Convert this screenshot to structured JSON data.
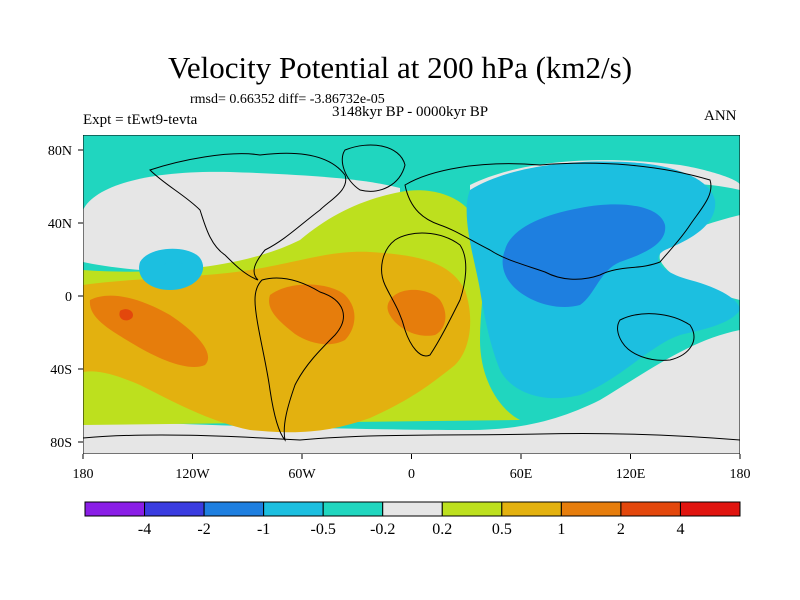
{
  "figure": {
    "title": "Velocity Potential at 200 hPa (km2/s)",
    "stats": "rmsd= 0.66352 diff= -3.86732e-05",
    "period": "3148kyr BP - 0000kyr BP",
    "experiment": "Expt = tEwt9-tevta",
    "season": "ANN"
  },
  "axes": {
    "lat_labels": [
      "80N",
      "40N",
      "0",
      "40S",
      "80S"
    ],
    "lon_labels": [
      "180",
      "120W",
      "60W",
      "0",
      "60E",
      "120E",
      "180"
    ]
  },
  "colorbar": {
    "colors": [
      "#8a1ee6",
      "#3a3ce0",
      "#1e7fe0",
      "#1cbfe0",
      "#20d6bf",
      "#e6e6e6",
      "#bde01e",
      "#e3b10f",
      "#e67d0c",
      "#e3470c",
      "#e0140f"
    ],
    "labels": [
      "-4",
      "-2",
      "-1",
      "-0.5",
      "-0.2",
      "0.2",
      "0.5",
      "1",
      "2",
      "4"
    ]
  },
  "field_colors": {
    "ocean_high_lat": "#20d6bf",
    "neutral": "#e6e6e6",
    "weak_positive": "#bde01e",
    "moderate_positive": "#e3b10f",
    "strong_positive": "#e67d0c",
    "max_positive": "#e3470c",
    "weak_negative": "#1cbfe0",
    "moderate_negative": "#1e7fe0",
    "coastline": "#000000"
  }
}
